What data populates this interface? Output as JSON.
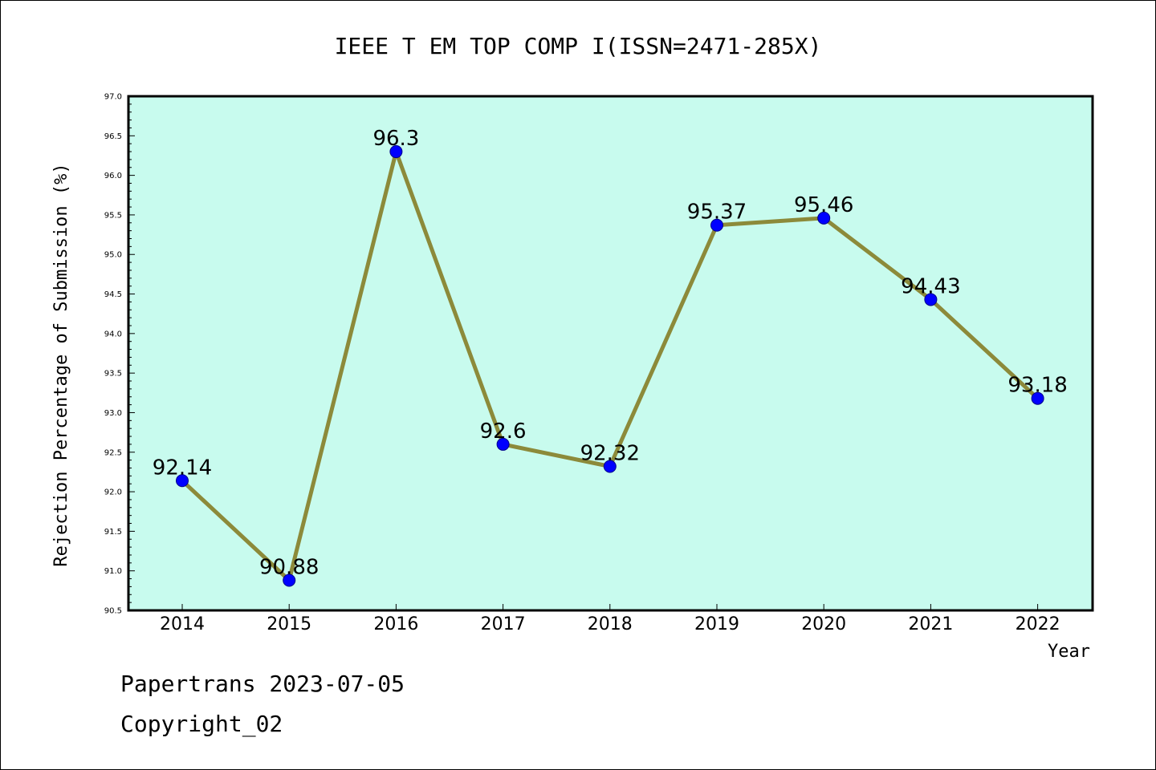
{
  "chart_data": {
    "type": "line",
    "title": "IEEE T EM TOP COMP I(ISSN=2471-285X)",
    "xlabel": "Year",
    "ylabel": "Rejection Percentage of Submission (%)",
    "categories": [
      "2014",
      "2015",
      "2016",
      "2017",
      "2018",
      "2019",
      "2020",
      "2021",
      "2022"
    ],
    "values": [
      92.14,
      90.88,
      96.3,
      92.6,
      92.32,
      95.37,
      95.46,
      94.43,
      93.18
    ],
    "data_labels": [
      "92.14",
      "90.88",
      "96.3",
      "92.6",
      "92.32",
      "95.37",
      "95.46",
      "94.43",
      "93.18"
    ],
    "ylim": [
      90.5,
      97.0
    ],
    "y_ticks": [
      90.5,
      91.0,
      91.5,
      92.0,
      92.5,
      93.0,
      93.5,
      94.0,
      94.5,
      95.0,
      95.5,
      96.0,
      96.5,
      97.0
    ],
    "y_tick_labels": [
      "90.5",
      "91.0",
      "91.5",
      "92.0",
      "92.5",
      "93.0",
      "93.5",
      "94.0",
      "94.5",
      "95.0",
      "95.5",
      "96.0",
      "96.5",
      "97.0"
    ],
    "grid": false,
    "legend": "none"
  },
  "colors": {
    "plot_background": "#c8fbee",
    "line": "#8c8a3a",
    "marker": "#0000ff",
    "axis": "#000000"
  },
  "footer": {
    "line1": "Papertrans 2023-07-05",
    "line2": "Copyright_02"
  }
}
